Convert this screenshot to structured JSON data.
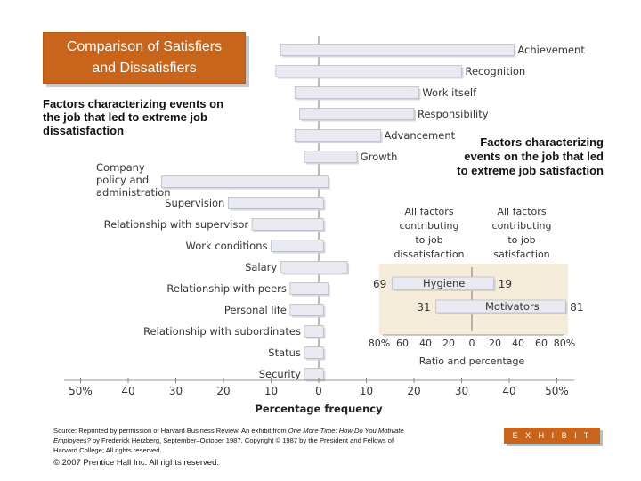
{
  "title_box": {
    "line1": "Comparison of Satisfiers",
    "line2": "and Dissatisfiers"
  },
  "left_caption": "Factors characterizing events on the job that led to extreme job dissatisfaction",
  "right_caption": "Factors characterizing events on the job that led to extreme job satisfaction",
  "source": {
    "prefix": "Source: Reprinted by permission of Harvard Business Review. An exhibit from ",
    "title1": "One More Time: How Do You Motivate Employees?",
    "mid": " by Frederick Herzberg, September–October 1987. Copyright © 1987 by the President and Fellows of Harvard College; All rights reserved."
  },
  "copyright": "© 2007 Prentice Hall Inc. All rights reserved.",
  "exhibit": "E X H I B I T  6–2",
  "colors": {
    "accent": "#c8651b",
    "bar": "#e9eaf1",
    "bar_edge": "#b9bbc8",
    "inset_bg": "#f4ecd9"
  },
  "chart_data": {
    "type": "bar",
    "orientation": "horizontal",
    "xlabel": "Percentage frequency",
    "x_ticks": [
      "50%",
      "40",
      "30",
      "20",
      "10",
      "0",
      "10",
      "20",
      "30",
      "40",
      "50%"
    ],
    "xlim": [
      -50,
      50
    ],
    "factors": [
      {
        "label": "Achievement",
        "left": -8,
        "right": 41
      },
      {
        "label": "Recognition",
        "left": -9,
        "right": 30
      },
      {
        "label": "Work itself",
        "left": -5,
        "right": 21
      },
      {
        "label": "Responsibility",
        "left": -4,
        "right": 20
      },
      {
        "label": "Advancement",
        "left": -5,
        "right": 13
      },
      {
        "label": "Growth",
        "left": -3,
        "right": 8
      },
      {
        "label": "Company policy and administration",
        "left": -33,
        "right": 2
      },
      {
        "label": "Supervision",
        "left": -19,
        "right": 1
      },
      {
        "label": "Relationship with supervisor",
        "left": -14,
        "right": 1
      },
      {
        "label": "Work conditions",
        "left": -10,
        "right": 1
      },
      {
        "label": "Salary",
        "left": -8,
        "right": 6
      },
      {
        "label": "Relationship with peers",
        "left": -6,
        "right": 2
      },
      {
        "label": "Personal life",
        "left": -6,
        "right": 1
      },
      {
        "label": "Relationship with subordinates",
        "left": -3,
        "right": 1
      },
      {
        "label": "Status",
        "left": -3,
        "right": 1
      },
      {
        "label": "Security",
        "left": -3,
        "right": 1
      }
    ],
    "inset": {
      "left_header": "All factors contributing to job dissatisfaction",
      "right_header": "All factors contributing to job satisfaction",
      "xlabel": "Ratio and percentage",
      "x_ticks": [
        "80%",
        "60",
        "40",
        "20",
        "0",
        "20",
        "40",
        "60",
        "80%"
      ],
      "xlim": [
        -80,
        80
      ],
      "rows": [
        {
          "label": "Hygiene",
          "left": 69,
          "right": 19,
          "left_text": "69",
          "right_text": "19"
        },
        {
          "label": "Motivators",
          "left": 31,
          "right": 81,
          "left_text": "31",
          "right_text": "81"
        }
      ]
    }
  }
}
